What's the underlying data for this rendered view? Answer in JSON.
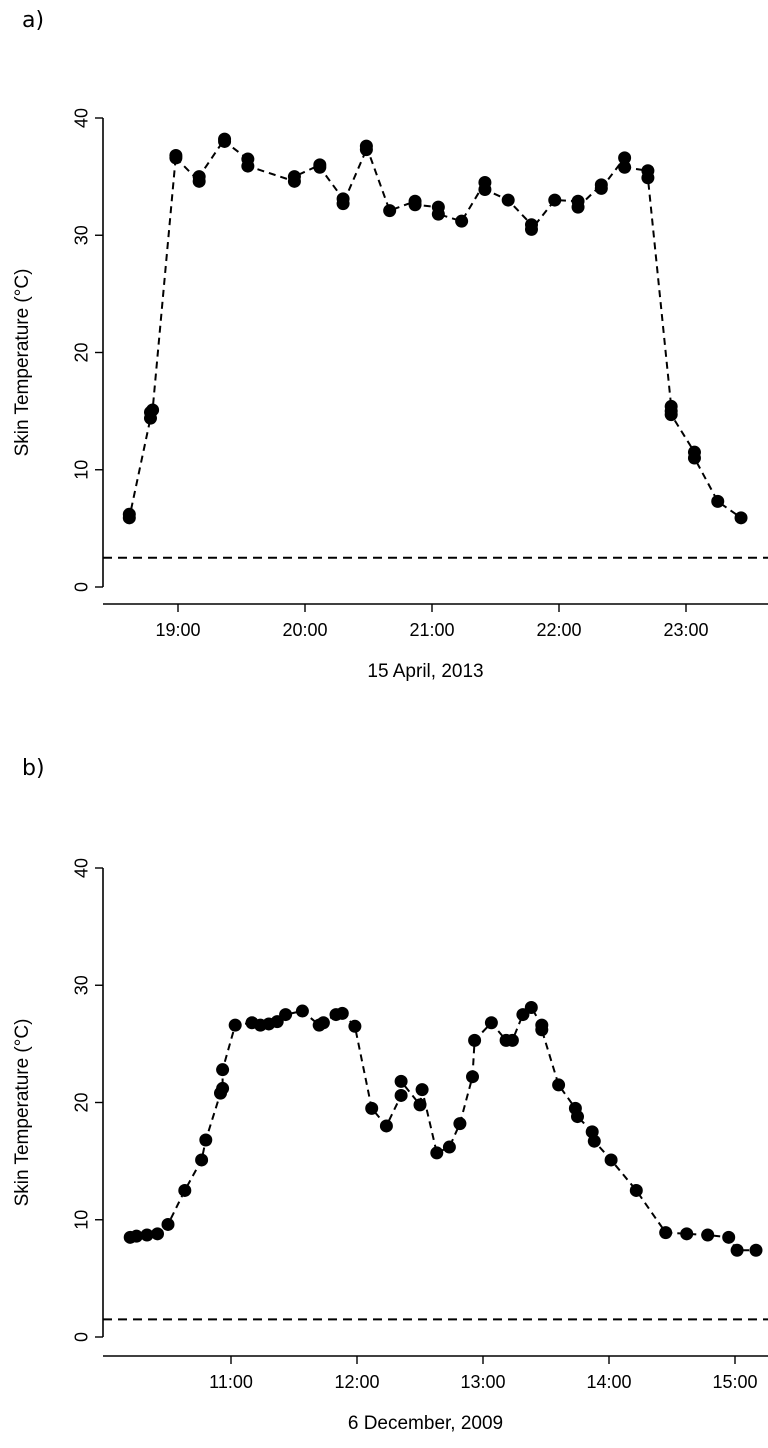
{
  "chart_data": [
    {
      "type": "line",
      "panel_label": "a)",
      "title": "",
      "xlabel": "15 April, 2013",
      "ylabel": "Skin Temperature (°C)",
      "x_unit": "hours (clock time)",
      "xlim": [
        18.3,
        23.5
      ],
      "ylim": [
        0,
        40
      ],
      "yticks": [
        0,
        10,
        20,
        30,
        40
      ],
      "xticks": [
        {
          "value": 19,
          "label": "19:00"
        },
        {
          "value": 20,
          "label": "20:00"
        },
        {
          "value": 21,
          "label": "21:00"
        },
        {
          "value": 22,
          "label": "22:00"
        },
        {
          "value": 23,
          "label": "23:00"
        }
      ],
      "threshold": 2.5,
      "series": [
        {
          "line_style": "dashed",
          "marker": "filled-circle",
          "color": "#000000",
          "points": [
            [
              "18:37",
              6.2
            ],
            [
              "18:37",
              5.9
            ],
            [
              "18:47",
              14.4
            ],
            [
              "18:47",
              14.9
            ],
            [
              "18:48",
              15.1
            ],
            [
              "18:59",
              36.8
            ],
            [
              "18:59",
              36.6
            ],
            [
              "19:10",
              34.6
            ],
            [
              "19:10",
              35.0
            ],
            [
              "19:22",
              38.2
            ],
            [
              "19:22",
              38.0
            ],
            [
              "19:33",
              36.5
            ],
            [
              "19:33",
              35.9
            ],
            [
              "19:55",
              34.6
            ],
            [
              "19:55",
              35.0
            ],
            [
              "20:07",
              36.0
            ],
            [
              "20:07",
              35.8
            ],
            [
              "20:18",
              33.1
            ],
            [
              "20:18",
              32.7
            ],
            [
              "20:29",
              37.3
            ],
            [
              "20:29",
              37.6
            ],
            [
              "20:40",
              32.1
            ],
            [
              "20:52",
              32.9
            ],
            [
              "20:52",
              32.6
            ],
            [
              "21:03",
              32.4
            ],
            [
              "21:03",
              31.8
            ],
            [
              "21:14",
              31.2
            ],
            [
              "21:25",
              34.5
            ],
            [
              "21:25",
              33.9
            ],
            [
              "21:36",
              33.0
            ],
            [
              "21:47",
              30.9
            ],
            [
              "21:47",
              30.5
            ],
            [
              "21:58",
              33.0
            ],
            [
              "22:09",
              32.9
            ],
            [
              "22:09",
              32.4
            ],
            [
              "22:20",
              34.3
            ],
            [
              "22:20",
              34.0
            ],
            [
              "22:31",
              36.6
            ],
            [
              "22:31",
              35.8
            ],
            [
              "22:42",
              35.5
            ],
            [
              "22:42",
              34.9
            ],
            [
              "22:53",
              15.4
            ],
            [
              "22:53",
              15.0
            ],
            [
              "22:53",
              14.7
            ],
            [
              "23:04",
              11.5
            ],
            [
              "23:04",
              11.0
            ],
            [
              "23:15",
              7.3
            ],
            [
              "23:26",
              5.9
            ]
          ]
        }
      ]
    },
    {
      "type": "line",
      "panel_label": "b)",
      "title": "",
      "xlabel": "6 December, 2009",
      "ylabel": "Skin Temperature (°C)",
      "x_unit": "hours (clock time)",
      "xlim": [
        10.0,
        15.3
      ],
      "ylim": [
        0,
        40
      ],
      "yticks": [
        0,
        10,
        20,
        30,
        40
      ],
      "xticks": [
        {
          "value": 11,
          "label": "11:00"
        },
        {
          "value": 12,
          "label": "12:00"
        },
        {
          "value": 13,
          "label": "13:00"
        },
        {
          "value": 14,
          "label": "14:00"
        },
        {
          "value": 15,
          "label": "15:00"
        }
      ],
      "threshold": 1.5,
      "series": [
        {
          "line_style": "dashed",
          "marker": "filled-circle",
          "color": "#000000",
          "points": [
            [
              "10:12",
              8.5
            ],
            [
              "10:15",
              8.6
            ],
            [
              "10:20",
              8.7
            ],
            [
              "10:25",
              8.8
            ],
            [
              "10:30",
              9.6
            ],
            [
              "10:38",
              12.5
            ],
            [
              "10:46",
              15.1
            ],
            [
              "10:48",
              16.8
            ],
            [
              "10:55",
              20.8
            ],
            [
              "10:56",
              21.2
            ],
            [
              "10:56",
              22.8
            ],
            [
              "11:02",
              26.6
            ],
            [
              "11:10",
              26.8
            ],
            [
              "11:14",
              26.6
            ],
            [
              "11:18",
              26.7
            ],
            [
              "11:22",
              26.9
            ],
            [
              "11:26",
              27.5
            ],
            [
              "11:34",
              27.8
            ],
            [
              "11:42",
              26.6
            ],
            [
              "11:44",
              26.8
            ],
            [
              "11:50",
              27.5
            ],
            [
              "11:53",
              27.6
            ],
            [
              "11:59",
              26.5
            ],
            [
              "12:07",
              19.5
            ],
            [
              "12:14",
              18.0
            ],
            [
              "12:21",
              20.6
            ],
            [
              "12:21",
              21.8
            ],
            [
              "12:30",
              19.8
            ],
            [
              "12:31",
              21.1
            ],
            [
              "12:38",
              15.7
            ],
            [
              "12:44",
              16.2
            ],
            [
              "12:49",
              18.2
            ],
            [
              "12:55",
              22.2
            ],
            [
              "12:56",
              25.3
            ],
            [
              "13:04",
              26.8
            ],
            [
              "13:11",
              25.3
            ],
            [
              "13:14",
              25.3
            ],
            [
              "13:19",
              27.5
            ],
            [
              "13:23",
              28.1
            ],
            [
              "13:28",
              26.6
            ],
            [
              "13:28",
              26.2
            ],
            [
              "13:36",
              21.5
            ],
            [
              "13:44",
              19.5
            ],
            [
              "13:45",
              18.8
            ],
            [
              "13:52",
              17.5
            ],
            [
              "13:53",
              16.7
            ],
            [
              "14:01",
              15.1
            ],
            [
              "14:13",
              12.5
            ],
            [
              "14:27",
              8.9
            ],
            [
              "14:37",
              8.8
            ],
            [
              "14:47",
              8.7
            ],
            [
              "14:57",
              8.5
            ],
            [
              "15:01",
              7.4
            ],
            [
              "15:10",
              7.4
            ]
          ]
        }
      ]
    }
  ]
}
